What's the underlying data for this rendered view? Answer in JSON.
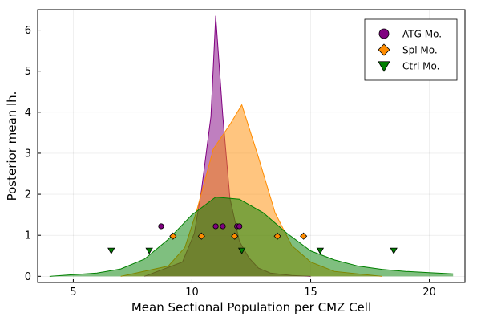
{
  "chart_data": {
    "type": "area",
    "title": "",
    "xlabel": "Mean Sectional Population per CMZ Cell",
    "ylabel": "Posterior mean lh.",
    "xlim": [
      3.5,
      21.5
    ],
    "ylim": [
      -0.15,
      6.5
    ],
    "xticks": [
      5,
      10,
      15,
      20
    ],
    "yticks": [
      0,
      1,
      2,
      3,
      4,
      5,
      6
    ],
    "grid": true,
    "legend_position": "top-right",
    "series": [
      {
        "name": "ATG Mo.",
        "color": "#800080",
        "marker": "circle",
        "density": {
          "x": [
            8.0,
            9.6,
            10.1,
            10.4,
            10.8,
            11.0,
            11.3,
            11.6,
            12.0,
            12.4,
            12.8,
            13.3,
            14.2,
            15.0
          ],
          "y": [
            0.0,
            0.35,
            1.05,
            2.1,
            3.9,
            6.35,
            3.9,
            1.9,
            0.85,
            0.45,
            0.2,
            0.08,
            0.02,
            0.0
          ]
        },
        "points": {
          "x": [
            8.7,
            11.0,
            11.3,
            11.9,
            12.0
          ],
          "y": [
            1.22,
            1.22,
            1.22,
            1.22,
            1.22
          ]
        }
      },
      {
        "name": "Spl Mo.",
        "color": "#ff8c00",
        "marker": "diamond",
        "density": {
          "x": [
            7.0,
            9.0,
            9.7,
            10.2,
            10.9,
            11.6,
            12.1,
            12.8,
            13.5,
            14.2,
            15.0,
            16.0,
            18.0
          ],
          "y": [
            0.0,
            0.25,
            0.7,
            1.6,
            3.1,
            3.7,
            4.18,
            2.9,
            1.55,
            0.75,
            0.35,
            0.12,
            0.0
          ]
        },
        "points": {
          "x": [
            9.2,
            10.4,
            11.8,
            13.6,
            14.7
          ],
          "y": [
            0.98,
            0.98,
            0.98,
            0.98,
            0.98
          ]
        }
      },
      {
        "name": "Ctrl Mo.",
        "color": "#008000",
        "marker": "triangle-down",
        "density": {
          "x": [
            4.0,
            5.0,
            6.0,
            7.0,
            8.0,
            9.0,
            10.0,
            11.0,
            12.0,
            13.0,
            14.0,
            15.0,
            16.0,
            17.0,
            18.0,
            19.0,
            20.0,
            21.0
          ],
          "y": [
            0.0,
            0.04,
            0.08,
            0.18,
            0.42,
            0.9,
            1.5,
            1.93,
            1.88,
            1.55,
            1.05,
            0.62,
            0.4,
            0.25,
            0.17,
            0.12,
            0.09,
            0.06
          ]
        },
        "points": {
          "x": [
            6.6,
            8.2,
            12.1,
            15.4,
            18.5
          ],
          "y": [
            0.63,
            0.63,
            0.63,
            0.63,
            0.63
          ]
        }
      }
    ]
  }
}
